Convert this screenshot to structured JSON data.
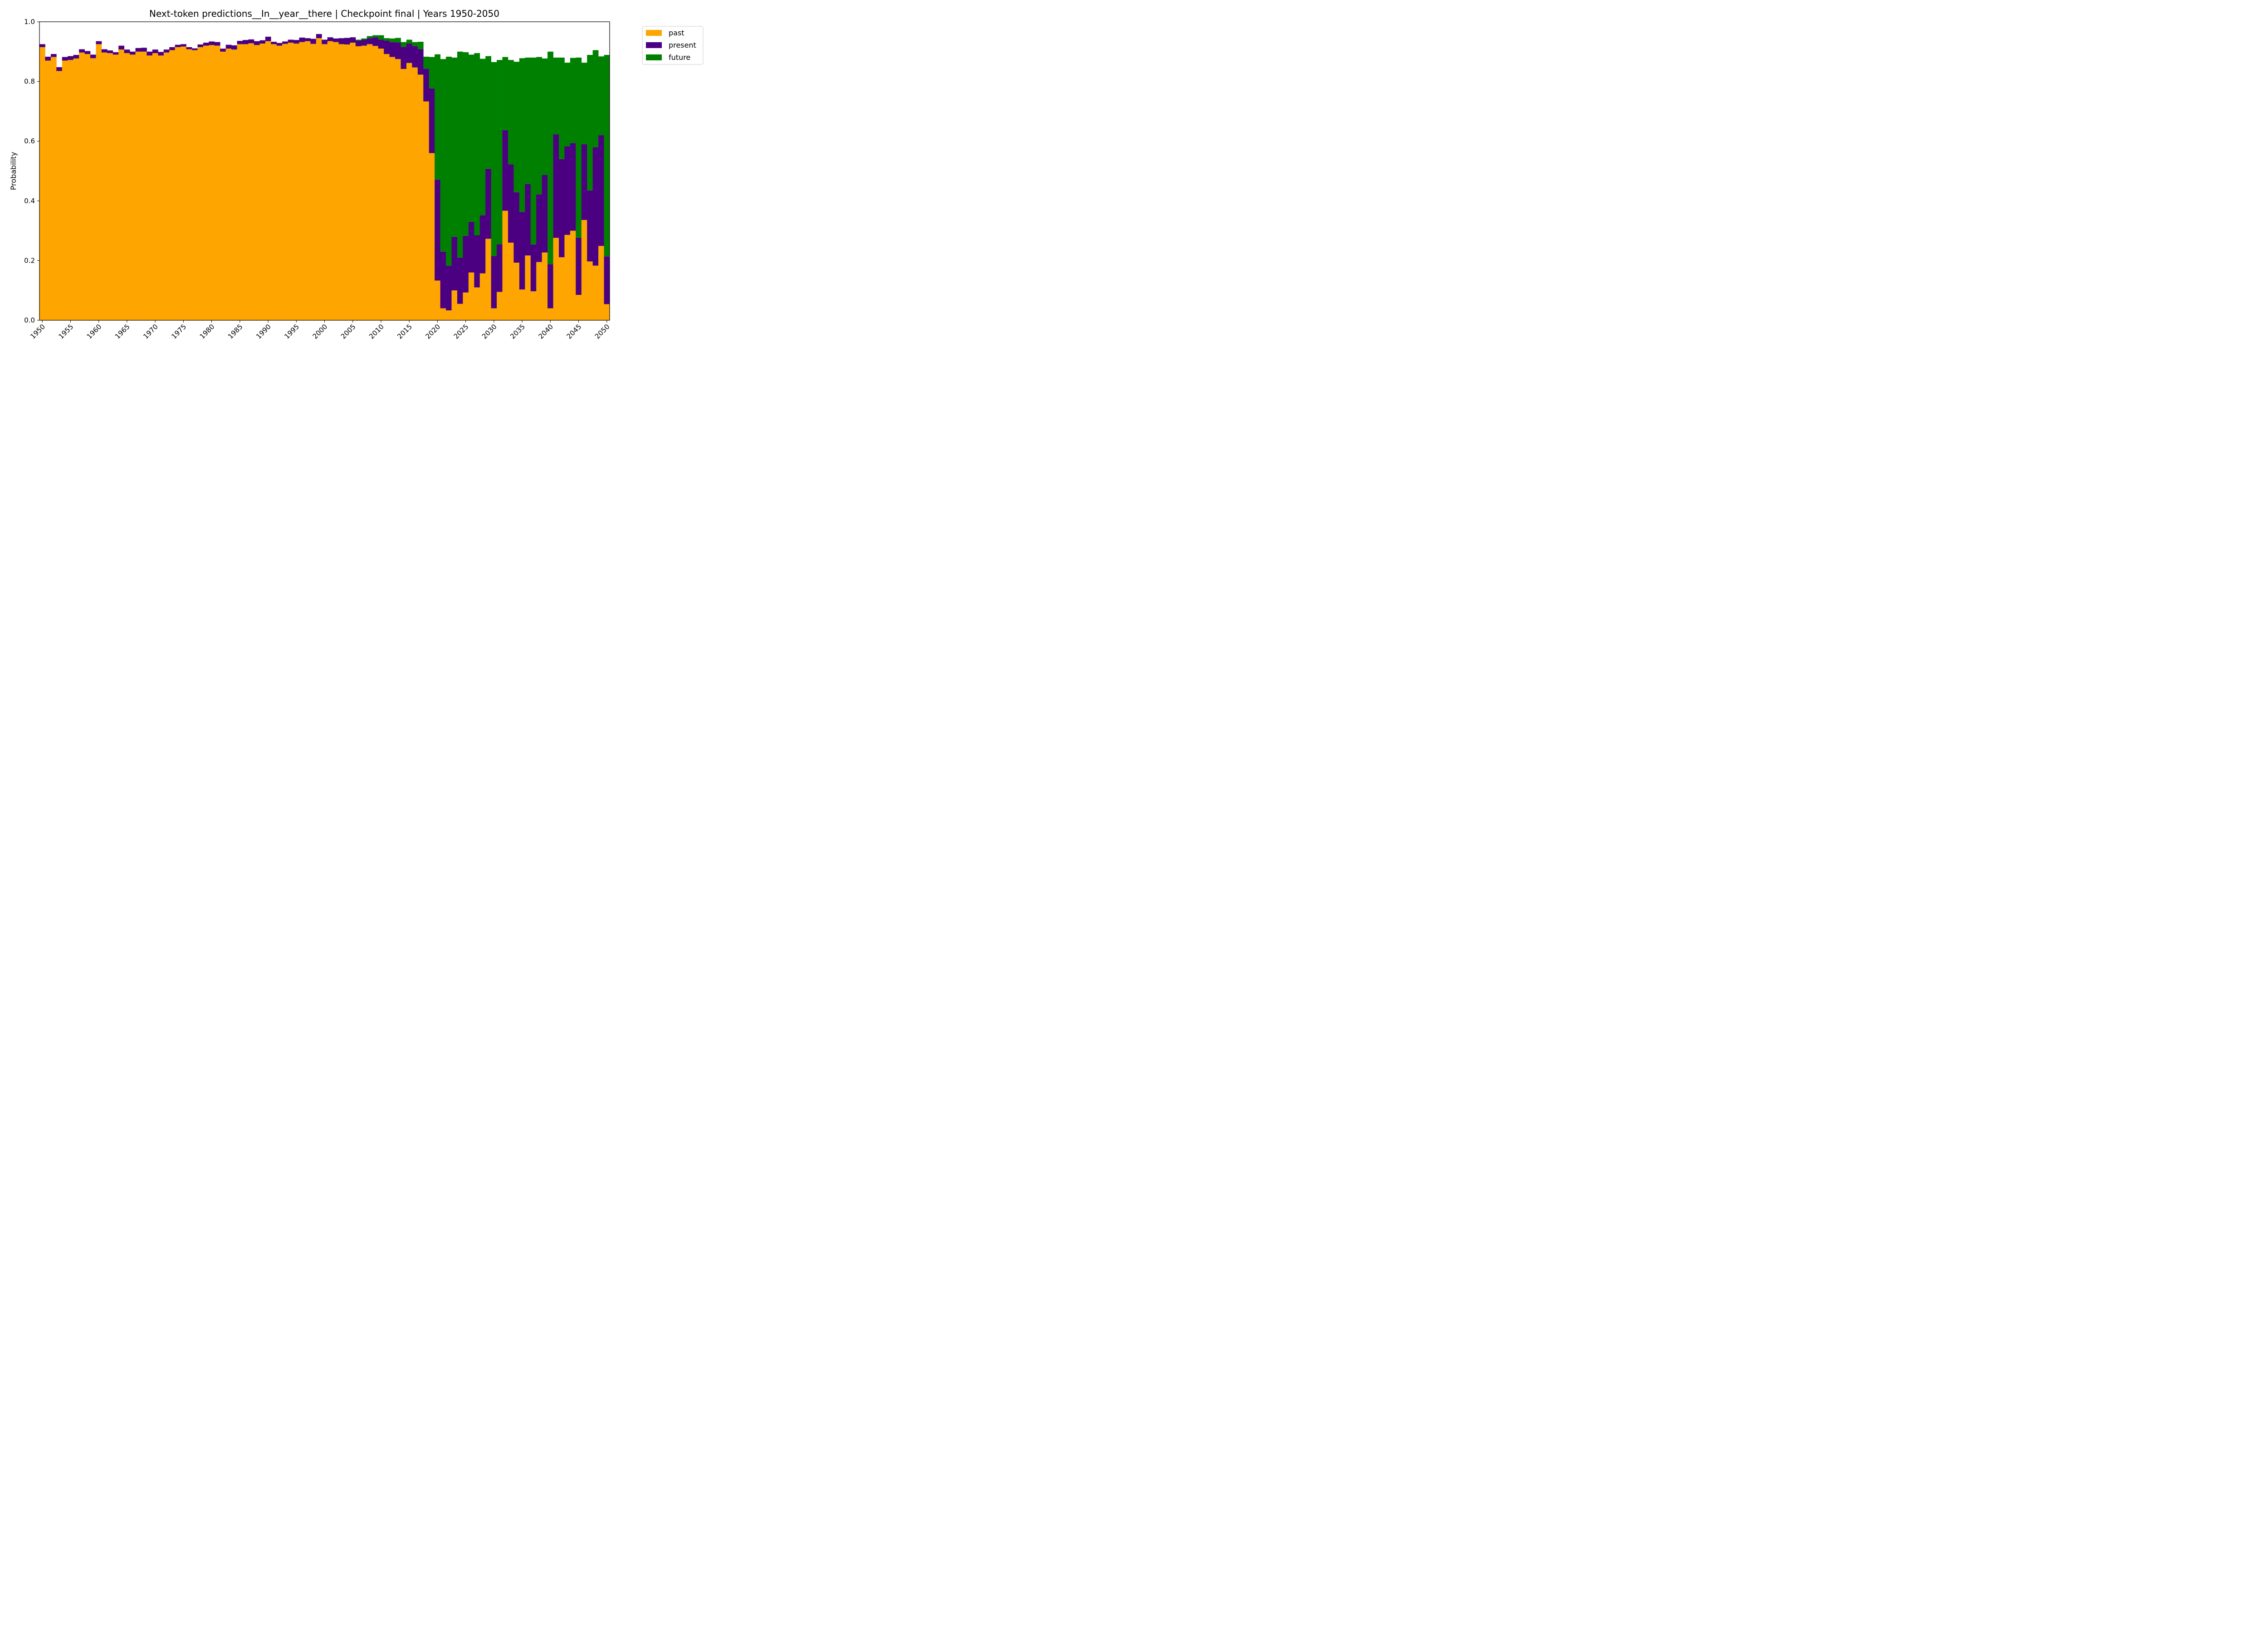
{
  "chart_data": {
    "type": "bar",
    "stacked": true,
    "title": "Next-token predictions__In__year__there | Checkpoint final | Years 1950-2050",
    "xlabel": "",
    "ylabel": "Probability",
    "ylim": [
      0,
      1.0
    ],
    "xlim": [
      1949.5,
      2050.5
    ],
    "yticks": [
      "0.0",
      "0.2",
      "0.4",
      "0.6",
      "0.8",
      "1.0"
    ],
    "xticks": [
      "1950",
      "1955",
      "1960",
      "1965",
      "1970",
      "1975",
      "1980",
      "1985",
      "1990",
      "1995",
      "2000",
      "2005",
      "2010",
      "2015",
      "2020",
      "2025",
      "2030",
      "2035",
      "2040",
      "2045",
      "2050"
    ],
    "grid": false,
    "legend_position": "outside-top-right",
    "x": [
      1950,
      1951,
      1952,
      1953,
      1954,
      1955,
      1956,
      1957,
      1958,
      1959,
      1960,
      1961,
      1962,
      1963,
      1964,
      1965,
      1966,
      1967,
      1968,
      1969,
      1970,
      1971,
      1972,
      1973,
      1974,
      1975,
      1976,
      1977,
      1978,
      1979,
      1980,
      1981,
      1982,
      1983,
      1984,
      1985,
      1986,
      1987,
      1988,
      1989,
      1990,
      1991,
      1992,
      1993,
      1994,
      1995,
      1996,
      1997,
      1998,
      1999,
      2000,
      2001,
      2002,
      2003,
      2004,
      2005,
      2006,
      2007,
      2008,
      2009,
      2010,
      2011,
      2012,
      2013,
      2014,
      2015,
      2016,
      2017,
      2018,
      2019,
      2020,
      2021,
      2022,
      2023,
      2024,
      2025,
      2026,
      2027,
      2028,
      2029,
      2030,
      2031,
      2032,
      2033,
      2034,
      2035,
      2036,
      2037,
      2038,
      2039,
      2040,
      2041,
      2042,
      2043,
      2044,
      2045,
      2046,
      2047,
      2048,
      2049,
      2050
    ],
    "series": [
      {
        "name": "past",
        "color": "#ffa500",
        "values": [
          0.915,
          0.87,
          0.882,
          0.835,
          0.87,
          0.872,
          0.877,
          0.897,
          0.892,
          0.878,
          0.925,
          0.897,
          0.895,
          0.89,
          0.907,
          0.895,
          0.89,
          0.9,
          0.9,
          0.887,
          0.895,
          0.887,
          0.897,
          0.905,
          0.915,
          0.917,
          0.908,
          0.905,
          0.915,
          0.92,
          0.922,
          0.92,
          0.9,
          0.91,
          0.907,
          0.925,
          0.925,
          0.928,
          0.922,
          0.927,
          0.935,
          0.925,
          0.92,
          0.926,
          0.93,
          0.927,
          0.932,
          0.935,
          0.926,
          0.945,
          0.925,
          0.935,
          0.932,
          0.925,
          0.924,
          0.93,
          0.918,
          0.92,
          0.925,
          0.919,
          0.91,
          0.892,
          0.882,
          0.875,
          0.842,
          0.862,
          0.847,
          0.823,
          0.733,
          0.56,
          0.133,
          0.04,
          0.033,
          0.1,
          0.055,
          0.093,
          0.16,
          0.11,
          0.157,
          0.273,
          0.04,
          0.095,
          0.367,
          0.26,
          0.193,
          0.103,
          0.217,
          0.097,
          0.195,
          0.227,
          0.04,
          0.276,
          0.211,
          0.286,
          0.3,
          0.085,
          0.336,
          0.197,
          0.183,
          0.249,
          0.054
        ]
      },
      {
        "name": "present",
        "color": "#4b0082",
        "values": [
          0.01,
          0.013,
          0.01,
          0.013,
          0.012,
          0.013,
          0.012,
          0.011,
          0.01,
          0.012,
          0.01,
          0.011,
          0.009,
          0.008,
          0.013,
          0.012,
          0.01,
          0.012,
          0.013,
          0.013,
          0.012,
          0.012,
          0.01,
          0.01,
          0.008,
          0.008,
          0.007,
          0.006,
          0.009,
          0.01,
          0.012,
          0.012,
          0.01,
          0.013,
          0.014,
          0.011,
          0.014,
          0.013,
          0.013,
          0.011,
          0.015,
          0.008,
          0.009,
          0.008,
          0.01,
          0.012,
          0.015,
          0.01,
          0.017,
          0.014,
          0.015,
          0.013,
          0.012,
          0.02,
          0.022,
          0.018,
          0.019,
          0.02,
          0.02,
          0.029,
          0.03,
          0.045,
          0.05,
          0.056,
          0.074,
          0.065,
          0.072,
          0.085,
          0.11,
          0.217,
          0.338,
          0.19,
          0.15,
          0.18,
          0.155,
          0.19,
          0.17,
          0.175,
          0.195,
          0.235,
          0.175,
          0.16,
          0.27,
          0.262,
          0.236,
          0.26,
          0.24,
          0.157,
          0.227,
          0.26,
          0.148,
          0.347,
          0.329,
          0.297,
          0.294,
          0.192,
          0.254,
          0.238,
          0.397,
          0.371,
          0.16
        ]
      },
      {
        "name": "future",
        "color": "#008000",
        "values": [
          0,
          0,
          0,
          0,
          0,
          0,
          0,
          0,
          0,
          0,
          0,
          0,
          0,
          0,
          0,
          0,
          0,
          0,
          0,
          0,
          0,
          0,
          0,
          0,
          0,
          0,
          0,
          0,
          0,
          0,
          0,
          0,
          0,
          0,
          0,
          0,
          0,
          0,
          0,
          0,
          0,
          0,
          0,
          0,
          0,
          0,
          0,
          0,
          0,
          0,
          0,
          0,
          0,
          0,
          0,
          0,
          0.003,
          0.004,
          0.007,
          0.007,
          0.015,
          0.008,
          0.012,
          0.015,
          0.016,
          0.013,
          0.013,
          0.025,
          0.04,
          0.105,
          0.42,
          0.645,
          0.7,
          0.6,
          0.69,
          0.615,
          0.56,
          0.61,
          0.524,
          0.377,
          0.65,
          0.617,
          0.245,
          0.35,
          0.437,
          0.515,
          0.423,
          0.626,
          0.46,
          0.39,
          0.712,
          0.257,
          0.34,
          0.28,
          0.285,
          0.603,
          0.273,
          0.454,
          0.325,
          0.264,
          0.675
        ]
      }
    ]
  }
}
